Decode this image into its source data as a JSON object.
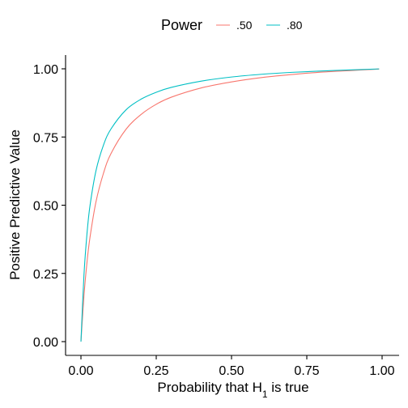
{
  "chart_data": {
    "type": "line",
    "legend": {
      "title": "Power",
      "position": "top"
    },
    "xlabel": {
      "prefix": "Probability that H",
      "subscript": "1",
      "suffix": " is true"
    },
    "ylabel": "Positive Predictive Value",
    "xlim": [
      0,
      1
    ],
    "ylim": [
      0,
      1
    ],
    "grid": false,
    "x_ticks": [
      0,
      0.25,
      0.5,
      0.75,
      1
    ],
    "x_tick_labels": [
      "0.00",
      "0.25",
      "0.50",
      "0.75",
      "1.00"
    ],
    "y_ticks": [
      0,
      0.25,
      0.5,
      0.75,
      1
    ],
    "y_tick_labels": [
      "0.00",
      "0.25",
      "0.50",
      "0.75",
      "1.00"
    ],
    "x": [
      0,
      0.01,
      0.02,
      0.03,
      0.05,
      0.075,
      0.1,
      0.15,
      0.2,
      0.25,
      0.3,
      0.4,
      0.5,
      0.6,
      0.7,
      0.8,
      0.9,
      0.99
    ],
    "series": [
      {
        "name": ".50",
        "color": "#F8766D",
        "values": [
          0,
          0.168,
          0.29,
          0.382,
          0.513,
          0.618,
          0.69,
          0.779,
          0.833,
          0.87,
          0.896,
          0.93,
          0.952,
          0.968,
          0.979,
          0.988,
          0.994,
          0.999
        ]
      },
      {
        "name": ".80",
        "color": "#00BFC4",
        "values": [
          0,
          0.244,
          0.395,
          0.498,
          0.627,
          0.721,
          0.78,
          0.85,
          0.889,
          0.914,
          0.932,
          0.955,
          0.97,
          0.98,
          0.987,
          0.992,
          0.996,
          0.9996
        ]
      }
    ]
  }
}
